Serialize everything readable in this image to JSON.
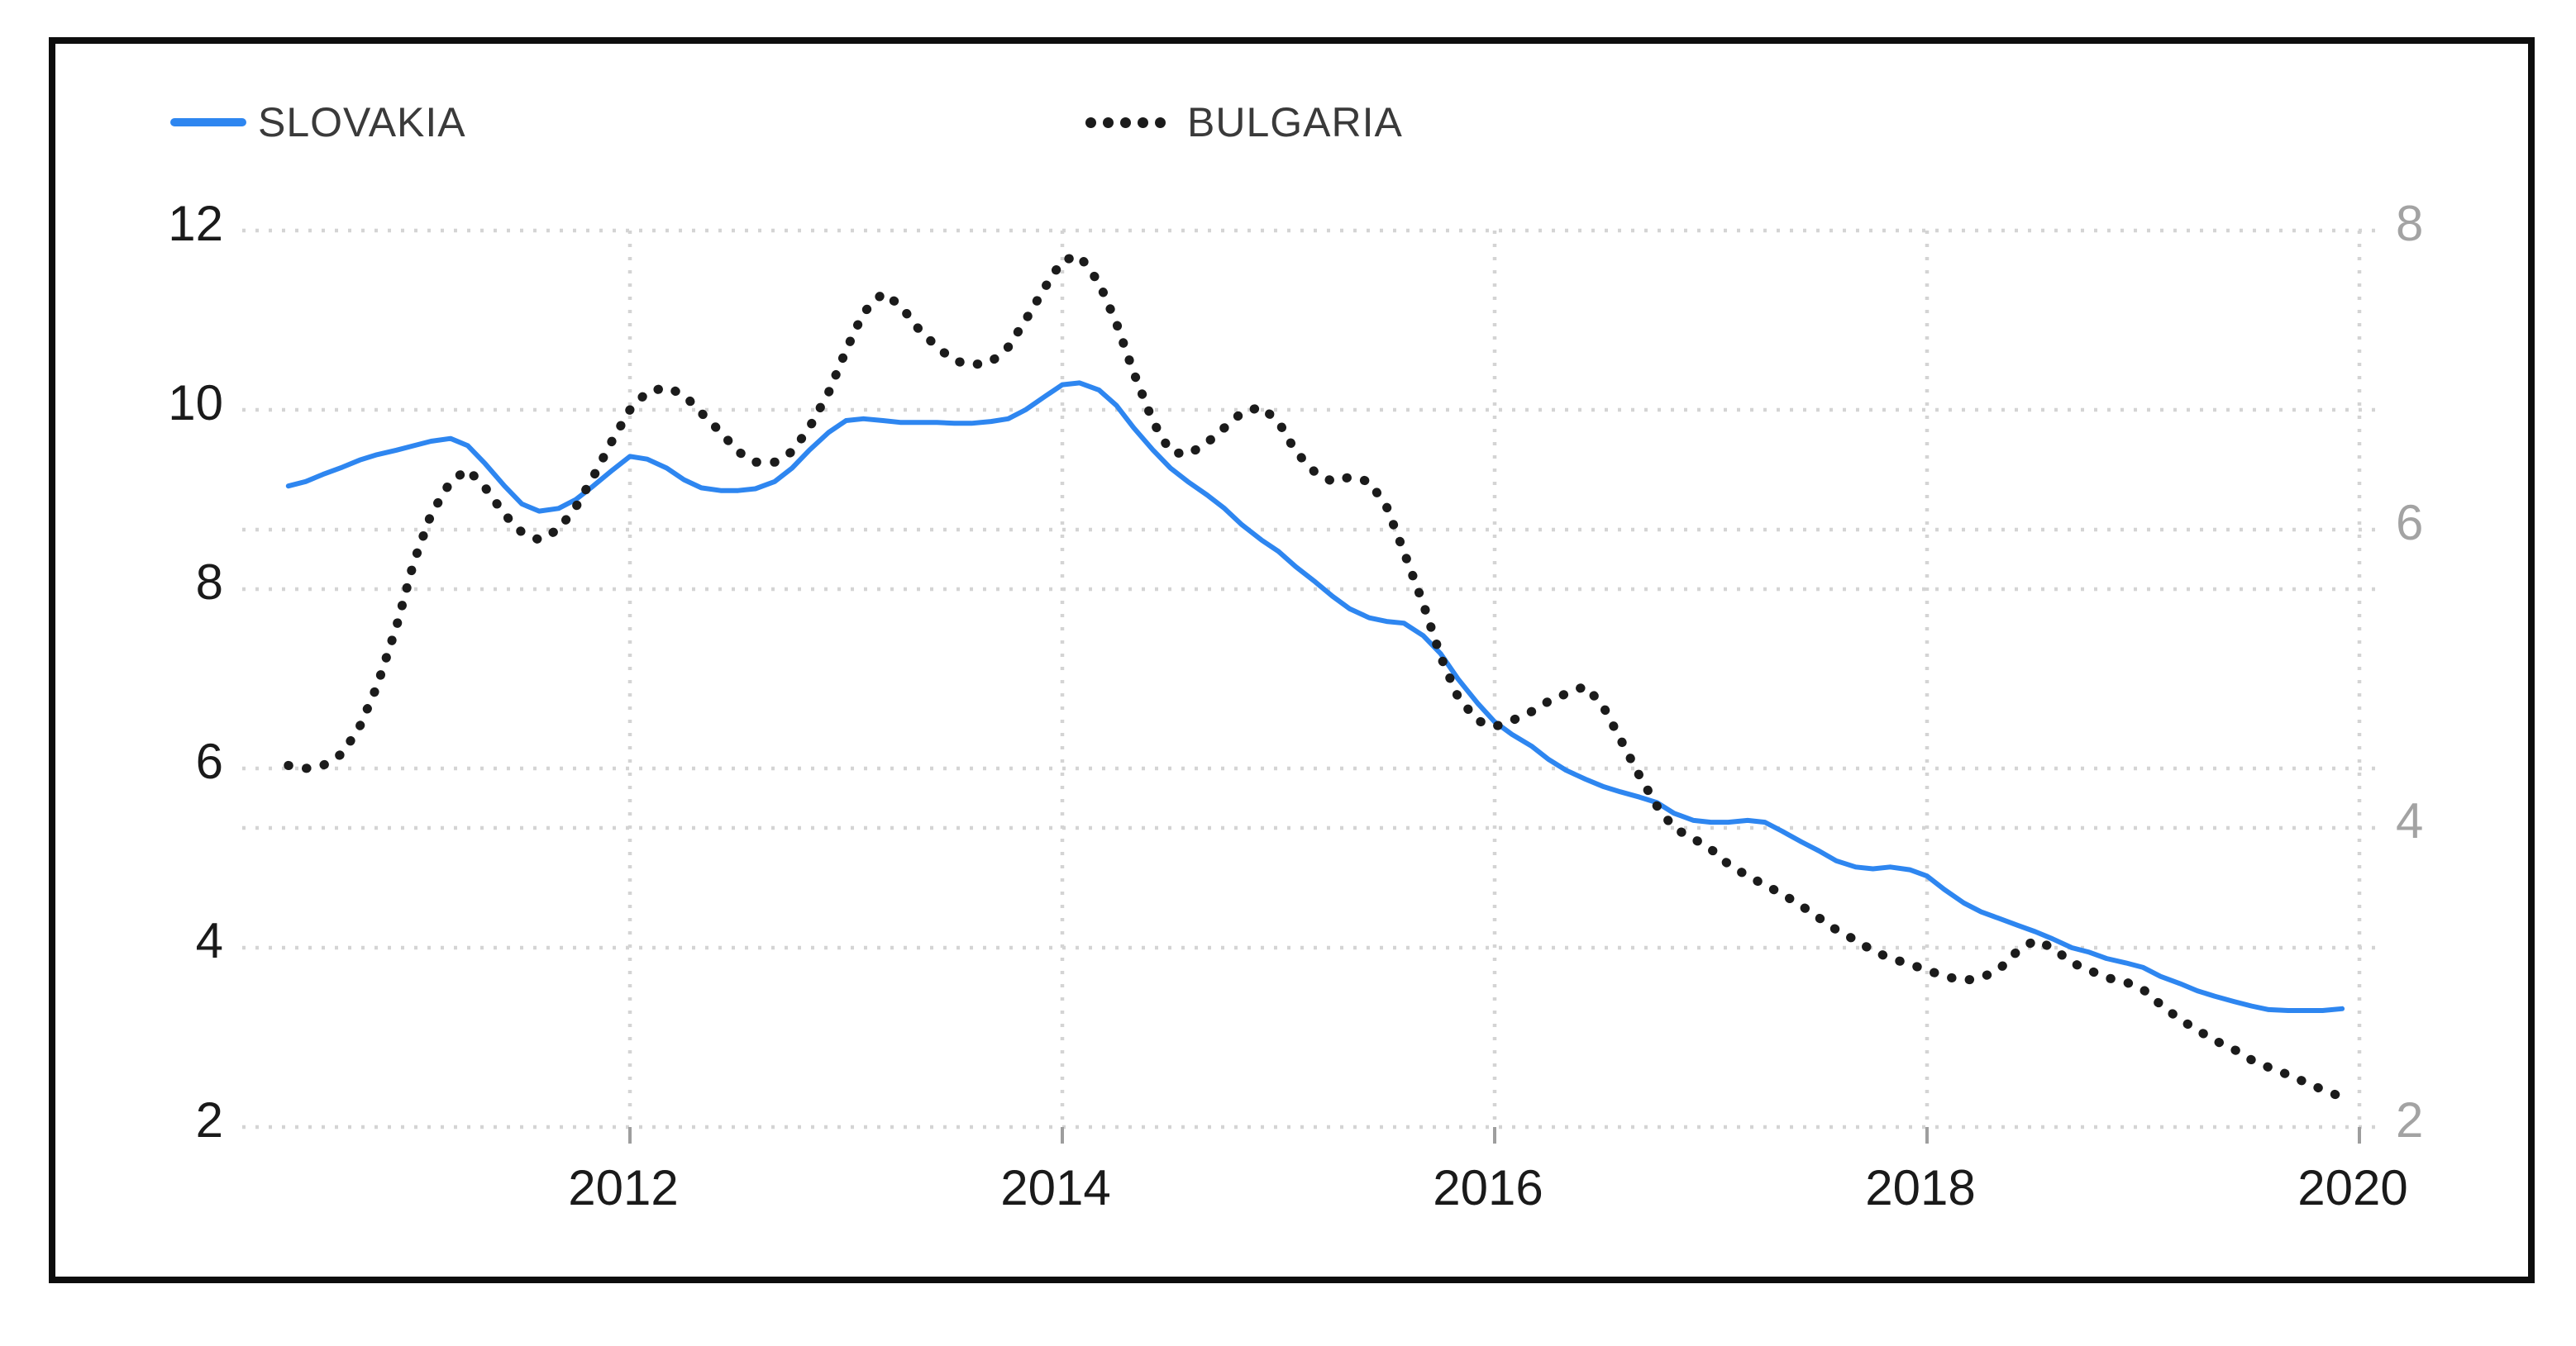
{
  "legend": [
    {
      "label": "SLOVAKIA",
      "color": "#2E86F0",
      "style": "solid"
    },
    {
      "label": "BULGARIA",
      "color": "#1b1b1b",
      "style": "dotted"
    }
  ],
  "colors": {
    "slovakia_line": "#2E86F0",
    "bulgaria_line": "#1b1b1b",
    "grid": "#d4d4d4",
    "axis_tick_mark": "#9e9e9e",
    "left_tick_text": "#1a1a1a",
    "right_tick_text": "#a3a3a3",
    "x_tick_text": "#1a1a1a",
    "frame_border": "#0d0d0d",
    "background": "#ffffff"
  },
  "chart_data": {
    "type": "line",
    "title": "",
    "legend_position": "top",
    "grid": true,
    "x_axis": {
      "ticks": [
        2012,
        2014,
        2016,
        2018,
        2020
      ],
      "range": [
        2010.2,
        2020.1
      ]
    },
    "left_axis": {
      "ticks": [
        2,
        4,
        6,
        8,
        10,
        12
      ],
      "range": [
        2,
        12
      ]
    },
    "right_axis": {
      "ticks": [
        2,
        4,
        6,
        8
      ],
      "range": [
        2,
        8
      ]
    },
    "series": [
      {
        "name": "SLOVAKIA",
        "axis": "left",
        "color": "#2E86F0",
        "line_style": "solid",
        "points": [
          [
            2010.42,
            9.15
          ],
          [
            2010.5,
            9.2
          ],
          [
            2010.58,
            9.28
          ],
          [
            2010.67,
            9.36
          ],
          [
            2010.75,
            9.44
          ],
          [
            2010.83,
            9.5
          ],
          [
            2010.92,
            9.55
          ],
          [
            2011.0,
            9.6
          ],
          [
            2011.08,
            9.65
          ],
          [
            2011.17,
            9.68
          ],
          [
            2011.25,
            9.6
          ],
          [
            2011.33,
            9.4
          ],
          [
            2011.42,
            9.15
          ],
          [
            2011.5,
            8.95
          ],
          [
            2011.58,
            8.87
          ],
          [
            2011.67,
            8.9
          ],
          [
            2011.75,
            9.0
          ],
          [
            2011.83,
            9.15
          ],
          [
            2011.92,
            9.33
          ],
          [
            2012.0,
            9.48
          ],
          [
            2012.08,
            9.45
          ],
          [
            2012.17,
            9.35
          ],
          [
            2012.25,
            9.22
          ],
          [
            2012.33,
            9.13
          ],
          [
            2012.42,
            9.1
          ],
          [
            2012.5,
            9.1
          ],
          [
            2012.58,
            9.12
          ],
          [
            2012.67,
            9.2
          ],
          [
            2012.75,
            9.35
          ],
          [
            2012.83,
            9.55
          ],
          [
            2012.92,
            9.75
          ],
          [
            2013.0,
            9.88
          ],
          [
            2013.08,
            9.9
          ],
          [
            2013.17,
            9.88
          ],
          [
            2013.25,
            9.86
          ],
          [
            2013.33,
            9.86
          ],
          [
            2013.42,
            9.86
          ],
          [
            2013.5,
            9.85
          ],
          [
            2013.58,
            9.85
          ],
          [
            2013.67,
            9.87
          ],
          [
            2013.75,
            9.9
          ],
          [
            2013.83,
            10.0
          ],
          [
            2013.92,
            10.15
          ],
          [
            2014.0,
            10.28
          ],
          [
            2014.08,
            10.3
          ],
          [
            2014.17,
            10.22
          ],
          [
            2014.25,
            10.05
          ],
          [
            2014.33,
            9.8
          ],
          [
            2014.42,
            9.55
          ],
          [
            2014.5,
            9.35
          ],
          [
            2014.58,
            9.2
          ],
          [
            2014.67,
            9.05
          ],
          [
            2014.75,
            8.9
          ],
          [
            2014.83,
            8.72
          ],
          [
            2014.92,
            8.55
          ],
          [
            2015.0,
            8.42
          ],
          [
            2015.08,
            8.25
          ],
          [
            2015.17,
            8.08
          ],
          [
            2015.25,
            7.92
          ],
          [
            2015.33,
            7.78
          ],
          [
            2015.42,
            7.68
          ],
          [
            2015.5,
            7.64
          ],
          [
            2015.58,
            7.62
          ],
          [
            2015.67,
            7.48
          ],
          [
            2015.75,
            7.28
          ],
          [
            2015.83,
            7.0
          ],
          [
            2015.92,
            6.73
          ],
          [
            2016.0,
            6.52
          ],
          [
            2016.08,
            6.38
          ],
          [
            2016.17,
            6.25
          ],
          [
            2016.25,
            6.1
          ],
          [
            2016.33,
            5.98
          ],
          [
            2016.42,
            5.88
          ],
          [
            2016.5,
            5.8
          ],
          [
            2016.58,
            5.74
          ],
          [
            2016.67,
            5.68
          ],
          [
            2016.75,
            5.62
          ],
          [
            2016.83,
            5.5
          ],
          [
            2016.92,
            5.42
          ],
          [
            2017.0,
            5.4
          ],
          [
            2017.08,
            5.4
          ],
          [
            2017.17,
            5.42
          ],
          [
            2017.25,
            5.4
          ],
          [
            2017.33,
            5.3
          ],
          [
            2017.42,
            5.18
          ],
          [
            2017.5,
            5.08
          ],
          [
            2017.58,
            4.97
          ],
          [
            2017.67,
            4.9
          ],
          [
            2017.75,
            4.88
          ],
          [
            2017.83,
            4.9
          ],
          [
            2017.92,
            4.87
          ],
          [
            2018.0,
            4.8
          ],
          [
            2018.08,
            4.65
          ],
          [
            2018.17,
            4.5
          ],
          [
            2018.25,
            4.4
          ],
          [
            2018.33,
            4.33
          ],
          [
            2018.42,
            4.25
          ],
          [
            2018.5,
            4.18
          ],
          [
            2018.58,
            4.1
          ],
          [
            2018.67,
            4.0
          ],
          [
            2018.75,
            3.95
          ],
          [
            2018.83,
            3.88
          ],
          [
            2018.92,
            3.83
          ],
          [
            2019.0,
            3.78
          ],
          [
            2019.08,
            3.68
          ],
          [
            2019.17,
            3.6
          ],
          [
            2019.25,
            3.52
          ],
          [
            2019.33,
            3.46
          ],
          [
            2019.42,
            3.4
          ],
          [
            2019.5,
            3.35
          ],
          [
            2019.58,
            3.31
          ],
          [
            2019.67,
            3.3
          ],
          [
            2019.75,
            3.3
          ],
          [
            2019.83,
            3.3
          ],
          [
            2019.92,
            3.32
          ]
        ]
      },
      {
        "name": "BULGARIA",
        "axis": "right",
        "color": "#1b1b1b",
        "line_style": "dotted",
        "points": [
          [
            2010.42,
            4.42
          ],
          [
            2010.5,
            4.4
          ],
          [
            2010.58,
            4.42
          ],
          [
            2010.67,
            4.5
          ],
          [
            2010.75,
            4.68
          ],
          [
            2010.83,
            4.95
          ],
          [
            2010.92,
            5.35
          ],
          [
            2011.0,
            5.78
          ],
          [
            2011.08,
            6.1
          ],
          [
            2011.17,
            6.32
          ],
          [
            2011.25,
            6.4
          ],
          [
            2011.33,
            6.28
          ],
          [
            2011.42,
            6.1
          ],
          [
            2011.5,
            5.98
          ],
          [
            2011.58,
            5.93
          ],
          [
            2011.67,
            6.0
          ],
          [
            2011.75,
            6.15
          ],
          [
            2011.83,
            6.35
          ],
          [
            2011.92,
            6.6
          ],
          [
            2012.0,
            6.8
          ],
          [
            2012.08,
            6.92
          ],
          [
            2012.17,
            6.95
          ],
          [
            2012.25,
            6.9
          ],
          [
            2012.33,
            6.78
          ],
          [
            2012.42,
            6.65
          ],
          [
            2012.5,
            6.52
          ],
          [
            2012.58,
            6.45
          ],
          [
            2012.67,
            6.45
          ],
          [
            2012.75,
            6.52
          ],
          [
            2012.83,
            6.68
          ],
          [
            2012.92,
            6.92
          ],
          [
            2013.0,
            7.2
          ],
          [
            2013.08,
            7.45
          ],
          [
            2013.17,
            7.58
          ],
          [
            2013.25,
            7.5
          ],
          [
            2013.33,
            7.35
          ],
          [
            2013.42,
            7.22
          ],
          [
            2013.5,
            7.13
          ],
          [
            2013.58,
            7.1
          ],
          [
            2013.67,
            7.12
          ],
          [
            2013.75,
            7.22
          ],
          [
            2013.83,
            7.4
          ],
          [
            2013.92,
            7.62
          ],
          [
            2014.0,
            7.8
          ],
          [
            2014.08,
            7.83
          ],
          [
            2014.17,
            7.65
          ],
          [
            2014.25,
            7.38
          ],
          [
            2014.33,
            7.05
          ],
          [
            2014.42,
            6.72
          ],
          [
            2014.5,
            6.52
          ],
          [
            2014.58,
            6.5
          ],
          [
            2014.67,
            6.58
          ],
          [
            2014.75,
            6.68
          ],
          [
            2014.83,
            6.78
          ],
          [
            2014.92,
            6.82
          ],
          [
            2015.0,
            6.72
          ],
          [
            2015.08,
            6.52
          ],
          [
            2015.17,
            6.38
          ],
          [
            2015.25,
            6.32
          ],
          [
            2015.33,
            6.35
          ],
          [
            2015.42,
            6.32
          ],
          [
            2015.5,
            6.15
          ],
          [
            2015.58,
            5.85
          ],
          [
            2015.67,
            5.5
          ],
          [
            2015.75,
            5.15
          ],
          [
            2015.83,
            4.88
          ],
          [
            2015.92,
            4.72
          ],
          [
            2016.0,
            4.68
          ],
          [
            2016.08,
            4.72
          ],
          [
            2016.17,
            4.78
          ],
          [
            2016.25,
            4.85
          ],
          [
            2016.33,
            4.9
          ],
          [
            2016.42,
            4.95
          ],
          [
            2016.5,
            4.82
          ],
          [
            2016.58,
            4.6
          ],
          [
            2016.67,
            4.35
          ],
          [
            2016.75,
            4.15
          ],
          [
            2016.83,
            4.0
          ],
          [
            2016.92,
            3.93
          ],
          [
            2017.0,
            3.86
          ],
          [
            2017.08,
            3.76
          ],
          [
            2017.17,
            3.68
          ],
          [
            2017.25,
            3.62
          ],
          [
            2017.33,
            3.56
          ],
          [
            2017.42,
            3.48
          ],
          [
            2017.5,
            3.4
          ],
          [
            2017.58,
            3.32
          ],
          [
            2017.67,
            3.25
          ],
          [
            2017.75,
            3.18
          ],
          [
            2017.83,
            3.13
          ],
          [
            2017.92,
            3.09
          ],
          [
            2018.0,
            3.05
          ],
          [
            2018.08,
            3.01
          ],
          [
            2018.17,
            2.98
          ],
          [
            2018.25,
            3.0
          ],
          [
            2018.33,
            3.05
          ],
          [
            2018.42,
            3.18
          ],
          [
            2018.5,
            3.25
          ],
          [
            2018.58,
            3.2
          ],
          [
            2018.67,
            3.1
          ],
          [
            2018.75,
            3.05
          ],
          [
            2018.83,
            3.0
          ],
          [
            2018.92,
            2.97
          ],
          [
            2019.0,
            2.92
          ],
          [
            2019.08,
            2.82
          ],
          [
            2019.17,
            2.72
          ],
          [
            2019.25,
            2.65
          ],
          [
            2019.33,
            2.58
          ],
          [
            2019.42,
            2.52
          ],
          [
            2019.5,
            2.45
          ],
          [
            2019.58,
            2.4
          ],
          [
            2019.67,
            2.35
          ],
          [
            2019.75,
            2.3
          ],
          [
            2019.83,
            2.25
          ],
          [
            2019.92,
            2.2
          ]
        ]
      }
    ]
  }
}
